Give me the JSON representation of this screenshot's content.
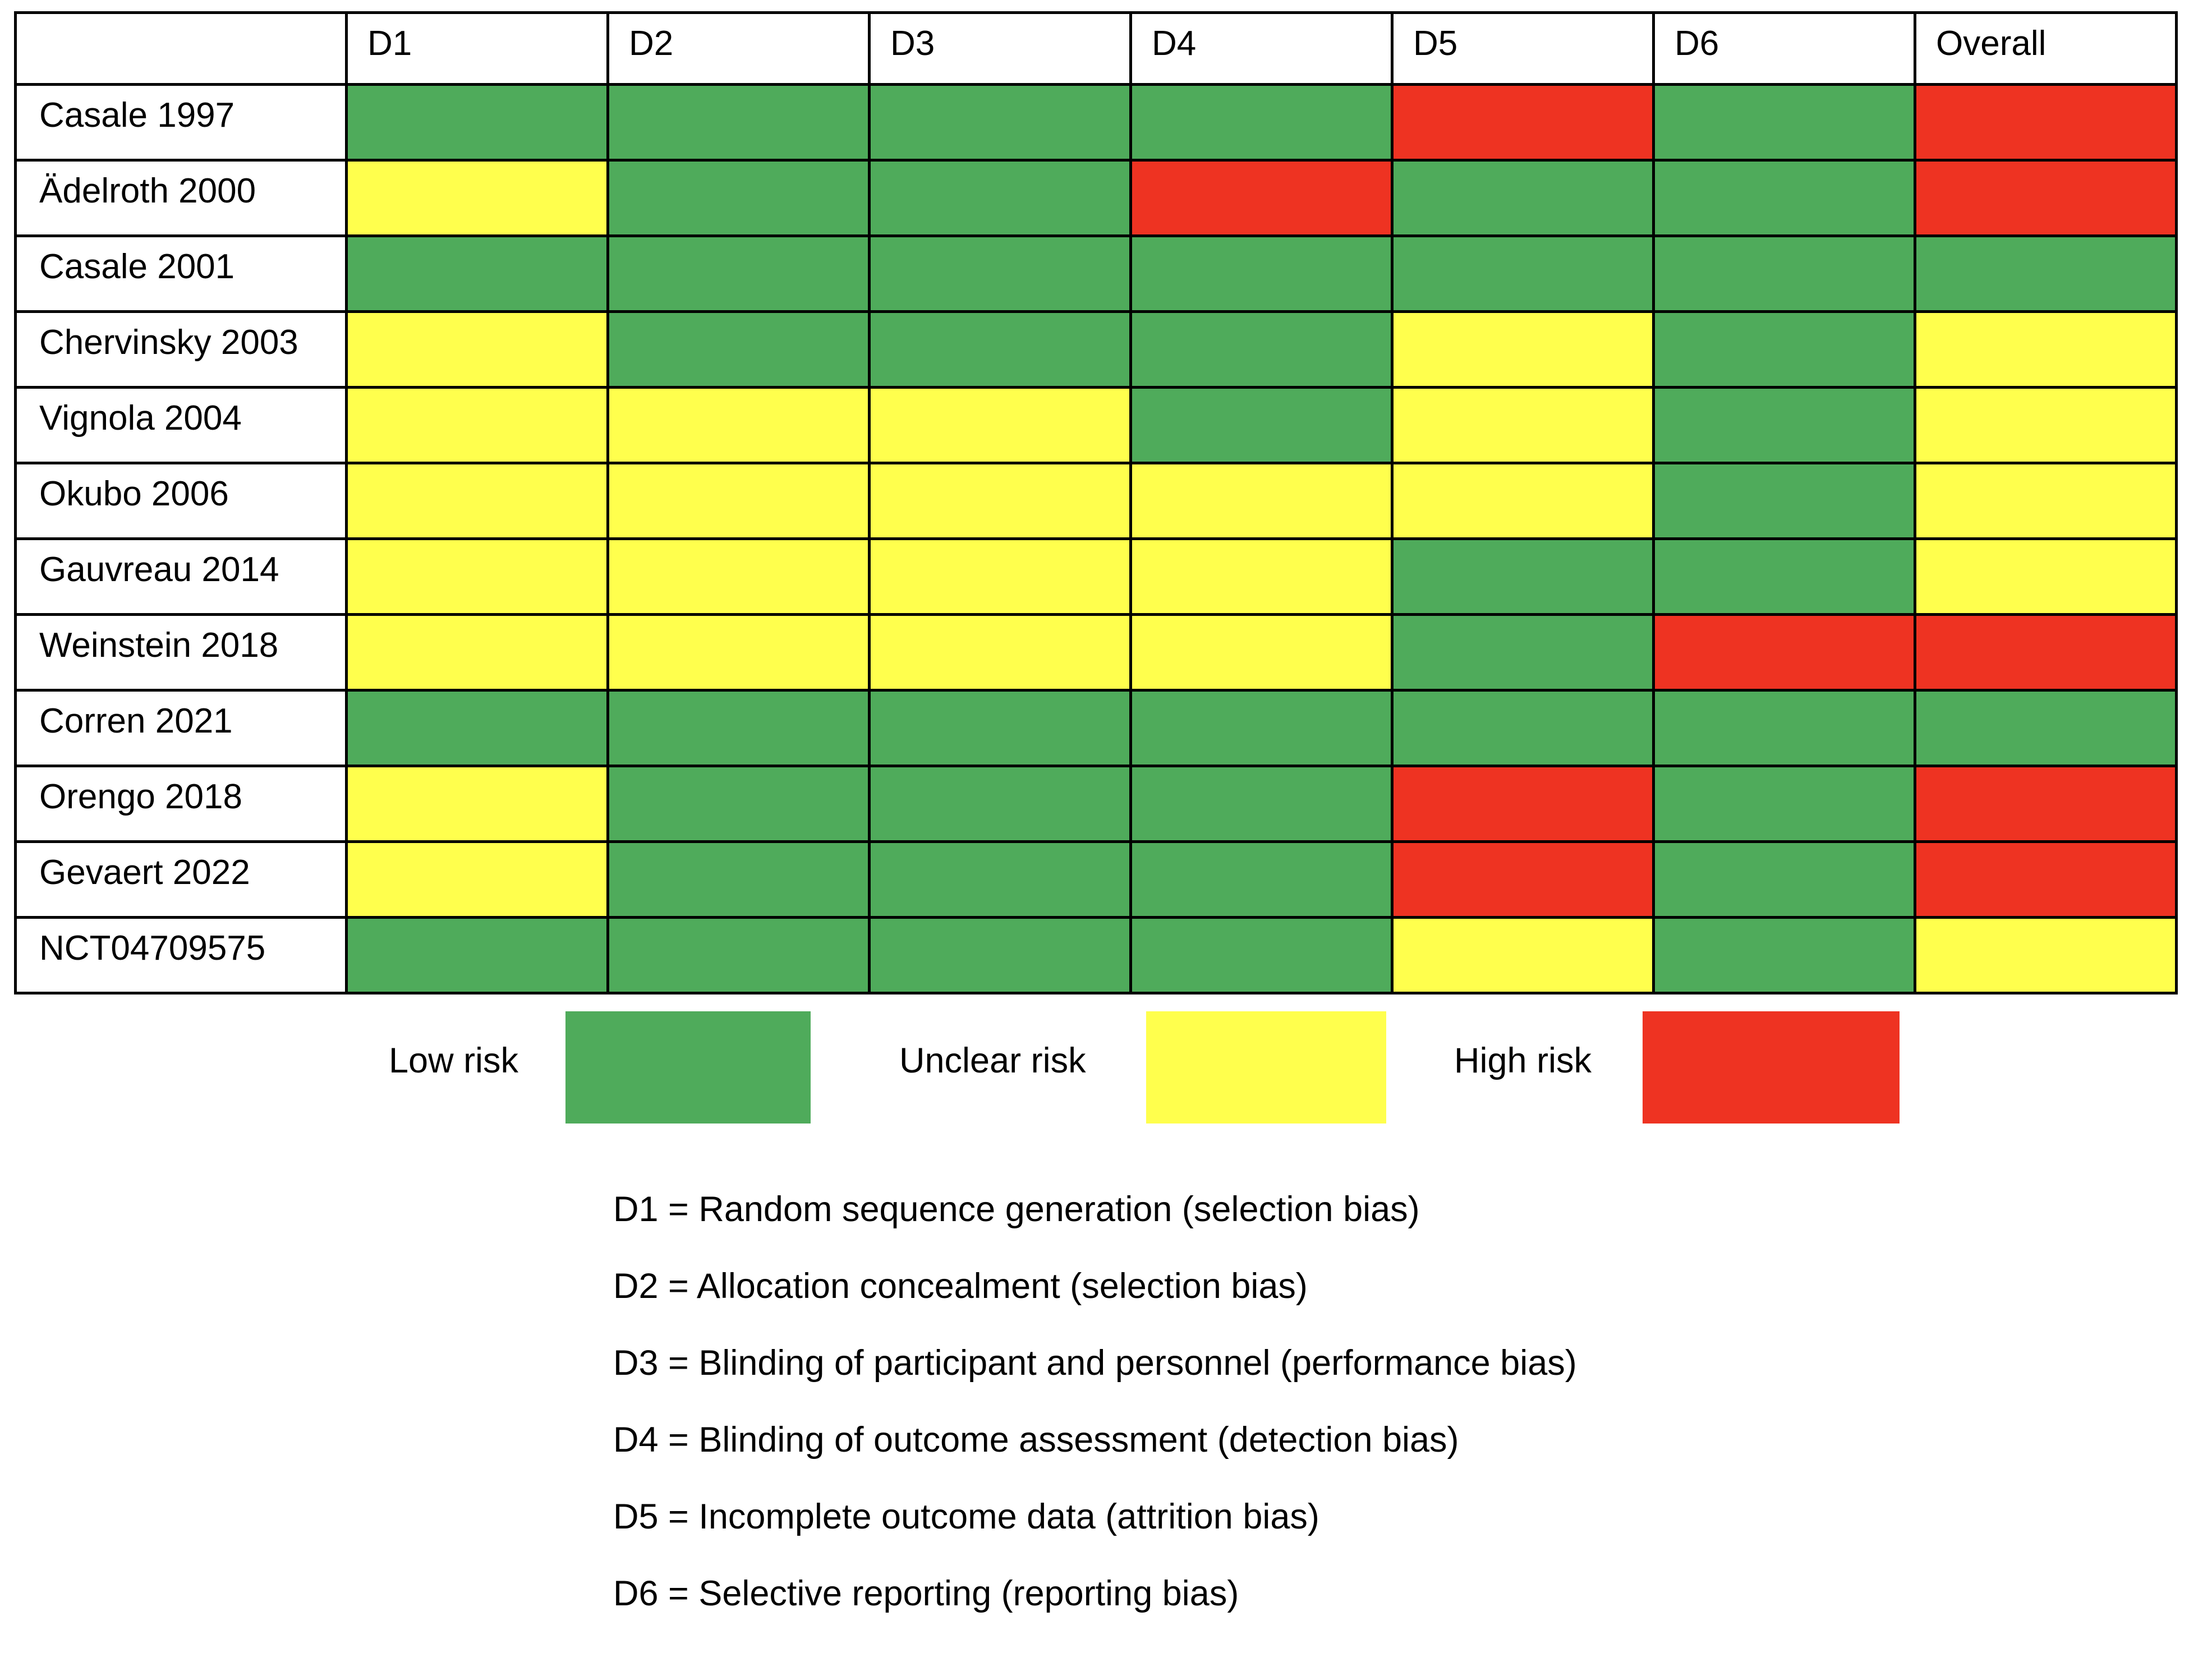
{
  "chart_data": {
    "type": "table",
    "title": "",
    "header_corner": "",
    "columns": [
      "D1",
      "D2",
      "D3",
      "D4",
      "D5",
      "D6",
      "Overall"
    ],
    "colors": {
      "low": "#4fab5b",
      "unclear": "#ffff4d",
      "high": "#ee3322"
    },
    "rows": [
      {
        "study": "Casale 1997",
        "ratings": [
          "low",
          "low",
          "low",
          "low",
          "high",
          "low",
          "high"
        ]
      },
      {
        "study": "Ädelroth 2000",
        "ratings": [
          "unclear",
          "low",
          "low",
          "high",
          "low",
          "low",
          "high"
        ]
      },
      {
        "study": "Casale 2001",
        "ratings": [
          "low",
          "low",
          "low",
          "low",
          "low",
          "low",
          "low"
        ]
      },
      {
        "study": "Chervinsky 2003",
        "ratings": [
          "unclear",
          "low",
          "low",
          "low",
          "unclear",
          "low",
          "unclear"
        ]
      },
      {
        "study": "Vignola 2004",
        "ratings": [
          "unclear",
          "unclear",
          "unclear",
          "low",
          "unclear",
          "low",
          "unclear"
        ]
      },
      {
        "study": "Okubo 2006",
        "ratings": [
          "unclear",
          "unclear",
          "unclear",
          "unclear",
          "unclear",
          "low",
          "unclear"
        ]
      },
      {
        "study": "Gauvreau 2014",
        "ratings": [
          "unclear",
          "unclear",
          "unclear",
          "unclear",
          "low",
          "low",
          "unclear"
        ]
      },
      {
        "study": "Weinstein 2018",
        "ratings": [
          "unclear",
          "unclear",
          "unclear",
          "unclear",
          "low",
          "high",
          "high"
        ]
      },
      {
        "study": "Corren 2021",
        "ratings": [
          "low",
          "low",
          "low",
          "low",
          "low",
          "low",
          "low"
        ]
      },
      {
        "study": "Orengo 2018",
        "ratings": [
          "unclear",
          "low",
          "low",
          "low",
          "high",
          "low",
          "high"
        ]
      },
      {
        "study": "Gevaert 2022",
        "ratings": [
          "unclear",
          "low",
          "low",
          "low",
          "high",
          "low",
          "high"
        ]
      },
      {
        "study": "NCT04709575",
        "ratings": [
          "low",
          "low",
          "low",
          "low",
          "unclear",
          "low",
          "unclear"
        ]
      }
    ],
    "legend": [
      {
        "key": "low",
        "label": "Low risk"
      },
      {
        "key": "unclear",
        "label": "Unclear risk"
      },
      {
        "key": "high",
        "label": "High risk"
      }
    ],
    "definitions": [
      "D1 = Random sequence generation (selection bias)",
      "D2 = Allocation concealment (selection bias)",
      "D3 = Blinding of participant and personnel (performance bias)",
      "D4 = Blinding of outcome assessment (detection bias)",
      "D5 = Incomplete outcome data (attrition bias)",
      "D6 = Selective reporting (reporting bias)"
    ]
  }
}
